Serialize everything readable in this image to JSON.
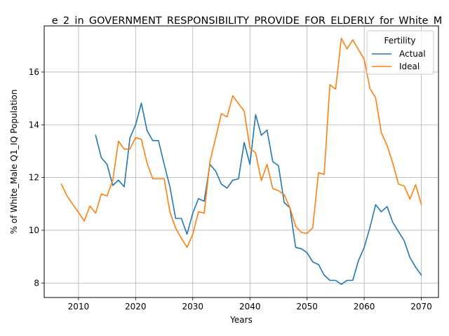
{
  "chart_data": {
    "type": "line",
    "title": "e_2_in_GOVERNMENT_RESPONSIBILITY_PROVIDE_FOR_ELDERLY_for_White_M",
    "xlabel": "Years",
    "ylabel": "% of White_Male Q1_IQ Population",
    "xlim": [
      2004,
      2073
    ],
    "ylim": [
      7.45,
      17.75
    ],
    "xticks": [
      2010,
      2020,
      2030,
      2040,
      2050,
      2060,
      2070
    ],
    "yticks": [
      8,
      10,
      12,
      14,
      16
    ],
    "grid": true,
    "legend": {
      "title": "Fertility",
      "placement": "top-right"
    },
    "colors": {
      "Actual": "#1f77b4",
      "Ideal": "#ff7f0e"
    },
    "series": [
      {
        "name": "Actual",
        "x": [
          2013,
          2014,
          2015,
          2016,
          2017,
          2018,
          2019,
          2020,
          2021,
          2022,
          2023,
          2024,
          2025,
          2026,
          2027,
          2028,
          2029,
          2030,
          2031,
          2032,
          2033,
          2034,
          2035,
          2036,
          2037,
          2038,
          2039,
          2040,
          2041,
          2042,
          2043,
          2044,
          2045,
          2046,
          2047,
          2048,
          2049,
          2050,
          2051,
          2052,
          2053,
          2054,
          2055,
          2056,
          2057,
          2058,
          2059,
          2060,
          2061,
          2062,
          2063,
          2064,
          2065,
          2066,
          2067,
          2068,
          2069,
          2070
        ],
        "values": [
          13.6,
          12.75,
          12.5,
          11.7,
          11.9,
          11.65,
          13.5,
          14.0,
          14.82,
          13.78,
          13.4,
          13.4,
          12.5,
          11.65,
          10.45,
          10.45,
          9.85,
          10.65,
          11.2,
          11.1,
          12.5,
          12.25,
          11.75,
          11.6,
          11.9,
          11.95,
          13.33,
          12.5,
          14.38,
          13.6,
          13.8,
          12.6,
          12.45,
          11.05,
          10.85,
          9.35,
          9.3,
          9.15,
          8.8,
          8.7,
          8.3,
          8.1,
          8.1,
          7.95,
          8.1,
          8.1,
          8.85,
          9.35,
          10.1,
          10.97,
          10.7,
          10.9,
          10.3,
          9.95,
          9.6,
          8.97,
          8.6,
          8.3
        ]
      },
      {
        "name": "Ideal",
        "x": [
          2007,
          2008,
          2009,
          2010,
          2011,
          2012,
          2013,
          2014,
          2015,
          2016,
          2017,
          2018,
          2019,
          2020,
          2021,
          2022,
          2023,
          2024,
          2025,
          2026,
          2027,
          2028,
          2029,
          2030,
          2031,
          2032,
          2033,
          2034,
          2035,
          2036,
          2037,
          2038,
          2039,
          2040,
          2041,
          2042,
          2043,
          2044,
          2045,
          2046,
          2047,
          2048,
          2049,
          2050,
          2051,
          2052,
          2053,
          2054,
          2055,
          2056,
          2057,
          2058,
          2059,
          2060,
          2061,
          2062,
          2063,
          2064,
          2065,
          2066,
          2067,
          2068,
          2069,
          2070
        ],
        "values": [
          11.75,
          11.3,
          10.98,
          10.68,
          10.35,
          10.92,
          10.65,
          11.38,
          11.3,
          11.9,
          13.38,
          13.08,
          13.08,
          13.52,
          13.45,
          12.55,
          11.95,
          11.95,
          11.95,
          10.7,
          10.08,
          9.7,
          9.35,
          9.85,
          10.7,
          10.65,
          12.6,
          13.5,
          14.42,
          14.3,
          15.1,
          14.8,
          14.52,
          13.12,
          12.93,
          11.88,
          12.5,
          11.58,
          11.5,
          11.35,
          10.85,
          10.15,
          9.92,
          9.88,
          10.1,
          12.18,
          12.12,
          15.52,
          15.35,
          17.28,
          16.88,
          17.22,
          16.85,
          16.48,
          15.38,
          15.02,
          13.7,
          13.22,
          12.55,
          11.75,
          11.68,
          11.18,
          11.73,
          10.98
        ]
      }
    ]
  }
}
